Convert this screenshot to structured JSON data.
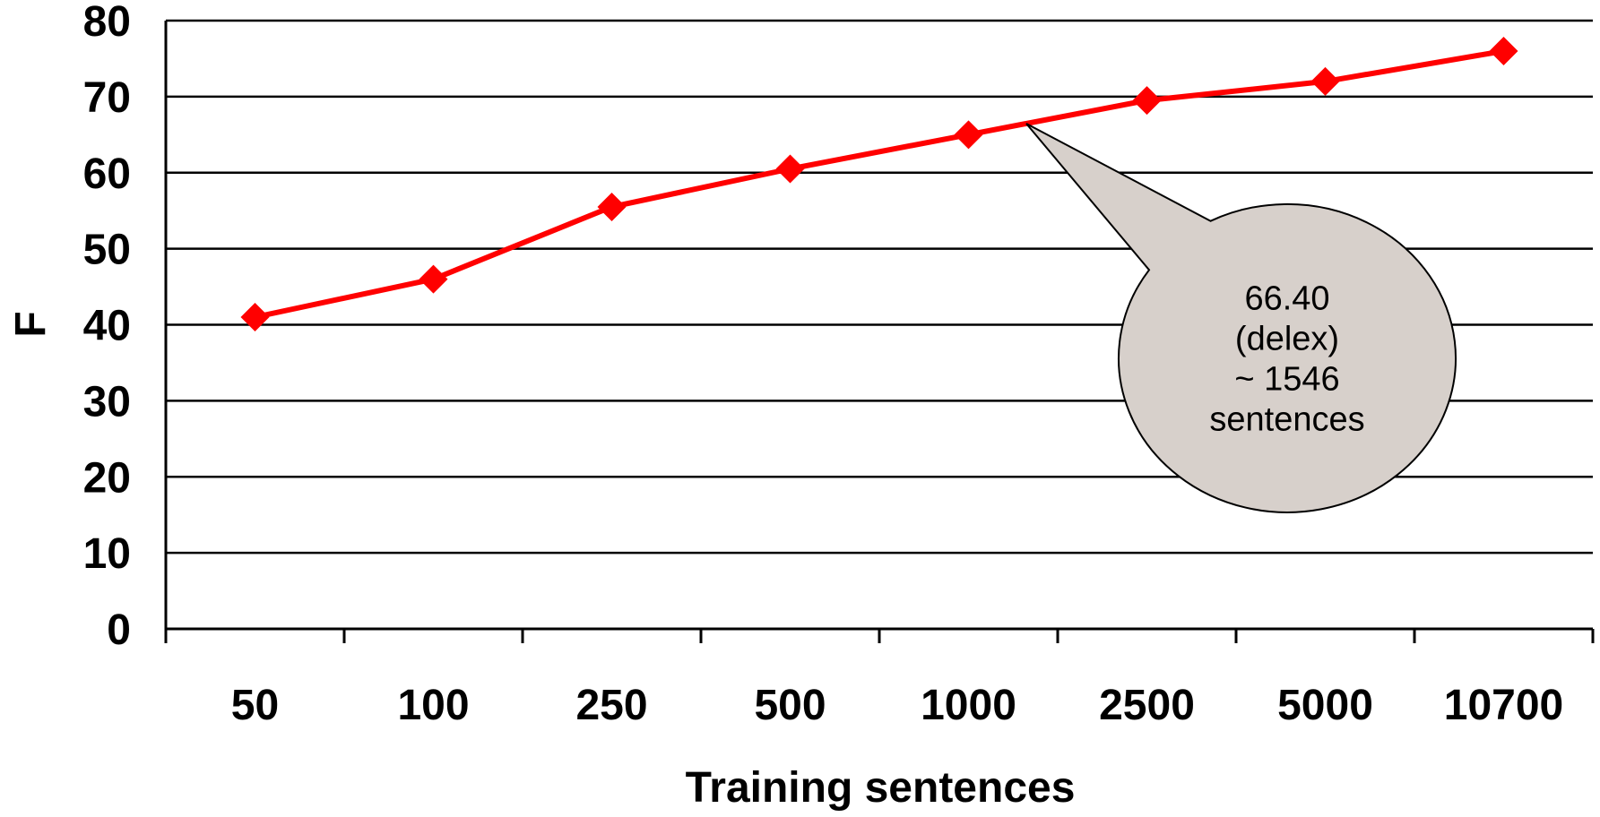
{
  "chart_data": {
    "type": "line",
    "categories": [
      "50",
      "100",
      "250",
      "500",
      "1000",
      "2500",
      "5000",
      "10700"
    ],
    "series": [
      {
        "values": [
          41,
          46,
          55.5,
          60.5,
          65,
          69.5,
          72,
          76
        ],
        "color": "#ff0000",
        "marker": "diamond"
      }
    ],
    "xlabel": "Training sentences",
    "ylabel": "F",
    "ylim": [
      0,
      80
    ],
    "yticks": [
      "0",
      "10",
      "20",
      "30",
      "40",
      "50",
      "60",
      "70",
      "80"
    ],
    "grid": "horizontal",
    "annotation": {
      "lines": [
        "66.40",
        "(delex)",
        "~ 1546",
        "sentences"
      ],
      "target_value": 66.4,
      "target_sentences": 1546,
      "fill": "#d7d0cb"
    }
  }
}
